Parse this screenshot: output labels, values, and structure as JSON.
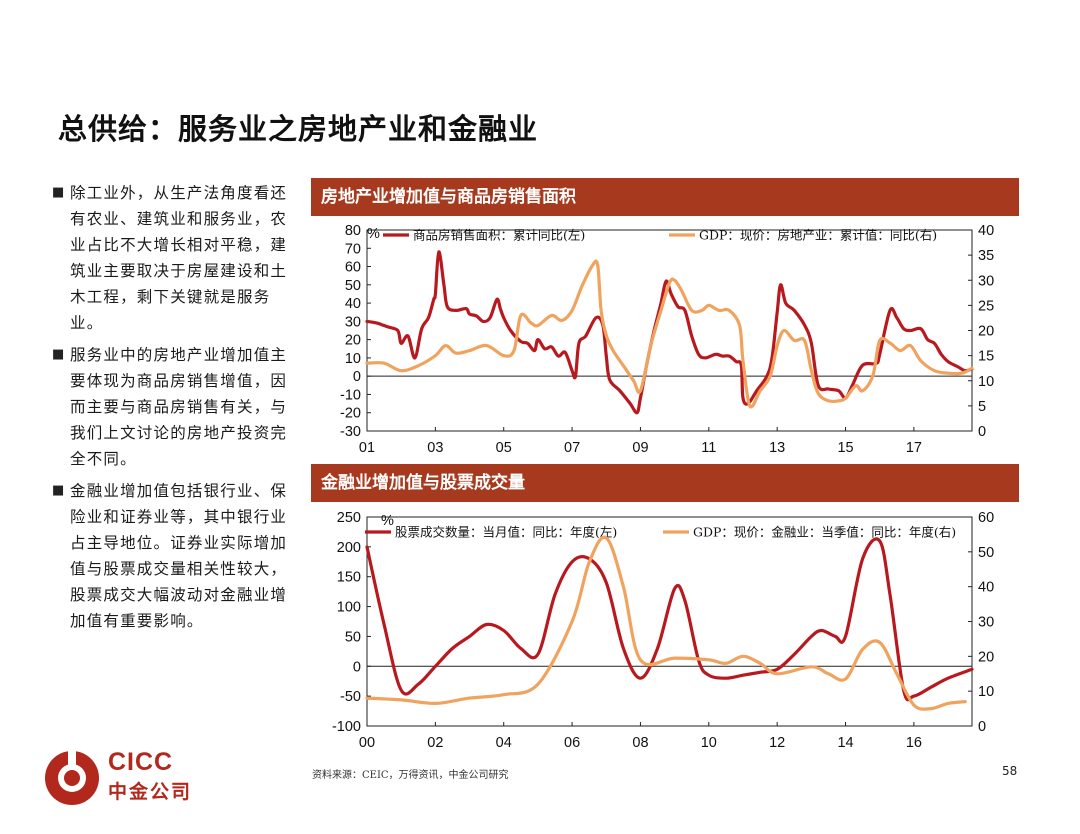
{
  "page": {
    "title": "总供给：服务业之房地产业和金融业",
    "page_number": "58",
    "source": "资料来源：CEIC，万得资讯，中金公司研究"
  },
  "logo": {
    "latin": "CICC",
    "chinese": "中金公司",
    "color": "#b2281c"
  },
  "bullets": [
    "除工业外，从生产法角度看还有农业、建筑业和服务业，农业占比不大增长相对平稳，建筑业主要取决于房屋建设和土木工程，剩下关键就是服务业。",
    "服务业中的房地产业增加值主要体现为商品房销售增值，因而主要与商品房销售有关，与我们上文讨论的房地产投资完全不同。",
    "金融业增加值包括银行业、保险业和证券业等，其中银行业占主导地位。证券业实际增加值与股票成交量相关性较大，股票成交大幅波动对金融业增加值有重要影响。"
  ],
  "colors": {
    "header_bg": "#a73a1e",
    "series_dark": "#b8191f",
    "series_light": "#f0a35e"
  },
  "chart_data": [
    {
      "type": "line",
      "title": "房地产业增加值与商品房销售面积",
      "left_unit": "%",
      "x_tick_labels": [
        "01",
        "03",
        "05",
        "07",
        "09",
        "11",
        "13",
        "15",
        "17"
      ],
      "x_ticks": [
        2001,
        2003,
        2005,
        2007,
        2009,
        2011,
        2013,
        2015,
        2017
      ],
      "xlim": [
        2001,
        2018.7
      ],
      "ylim_left": [
        -30,
        80
      ],
      "yticks_left": [
        -30,
        -20,
        -10,
        0,
        10,
        20,
        30,
        40,
        50,
        60,
        70,
        80
      ],
      "ylim_right": [
        0,
        40
      ],
      "yticks_right": [
        0,
        5,
        10,
        15,
        20,
        25,
        30,
        35,
        40
      ],
      "legend_position": "top",
      "series": [
        {
          "name": "商品房销售面积：累计同比(左)",
          "axis": "left",
          "color": "#b8191f",
          "points": [
            [
              2001.0,
              30
            ],
            [
              2001.3,
              29
            ],
            [
              2001.6,
              27
            ],
            [
              2001.9,
              25
            ],
            [
              2002.0,
              18
            ],
            [
              2002.2,
              22
            ],
            [
              2002.4,
              10
            ],
            [
              2002.6,
              26
            ],
            [
              2002.8,
              32
            ],
            [
              2002.95,
              42
            ],
            [
              2003.0,
              45
            ],
            [
              2003.1,
              68
            ],
            [
              2003.25,
              50
            ],
            [
              2003.35,
              38
            ],
            [
              2003.6,
              36
            ],
            [
              2003.9,
              37
            ],
            [
              2004.0,
              34
            ],
            [
              2004.2,
              33
            ],
            [
              2004.4,
              30
            ],
            [
              2004.6,
              32
            ],
            [
              2004.8,
              42
            ],
            [
              2004.9,
              37
            ],
            [
              2005.0,
              32
            ],
            [
              2005.2,
              25
            ],
            [
              2005.5,
              19
            ],
            [
              2005.7,
              18
            ],
            [
              2005.9,
              14
            ],
            [
              2006.0,
              20
            ],
            [
              2006.2,
              15
            ],
            [
              2006.4,
              16
            ],
            [
              2006.6,
              11
            ],
            [
              2006.8,
              13
            ],
            [
              2007.0,
              3
            ],
            [
              2007.1,
              0
            ],
            [
              2007.2,
              18
            ],
            [
              2007.4,
              22
            ],
            [
              2007.7,
              32
            ],
            [
              2007.9,
              28
            ],
            [
              2008.0,
              11
            ],
            [
              2008.1,
              -2
            ],
            [
              2008.4,
              -8
            ],
            [
              2008.7,
              -15
            ],
            [
              2008.9,
              -20
            ],
            [
              2009.0,
              -12
            ],
            [
              2009.2,
              8
            ],
            [
              2009.4,
              25
            ],
            [
              2009.6,
              40
            ],
            [
              2009.75,
              52
            ],
            [
              2009.9,
              45
            ],
            [
              2010.1,
              38
            ],
            [
              2010.3,
              36
            ],
            [
              2010.5,
              22
            ],
            [
              2010.7,
              12
            ],
            [
              2010.9,
              10
            ],
            [
              2011.2,
              12
            ],
            [
              2011.4,
              11
            ],
            [
              2011.6,
              11
            ],
            [
              2011.8,
              8
            ],
            [
              2011.95,
              6
            ],
            [
              2012.0,
              -12
            ],
            [
              2012.15,
              -15
            ],
            [
              2012.4,
              -8
            ],
            [
              2012.7,
              0
            ],
            [
              2012.85,
              10
            ],
            [
              2013.0,
              35
            ],
            [
              2013.1,
              50
            ],
            [
              2013.25,
              40
            ],
            [
              2013.5,
              36
            ],
            [
              2013.8,
              28
            ],
            [
              2014.0,
              18
            ],
            [
              2014.2,
              -5
            ],
            [
              2014.5,
              -7
            ],
            [
              2014.8,
              -8
            ],
            [
              2015.0,
              -12
            ],
            [
              2015.2,
              -5
            ],
            [
              2015.5,
              6
            ],
            [
              2015.9,
              7
            ],
            [
              2016.0,
              12
            ],
            [
              2016.3,
              36
            ],
            [
              2016.5,
              32
            ],
            [
              2016.7,
              26
            ],
            [
              2016.9,
              25
            ],
            [
              2017.2,
              26
            ],
            [
              2017.4,
              20
            ],
            [
              2017.6,
              18
            ],
            [
              2017.8,
              12
            ],
            [
              2018.0,
              8
            ],
            [
              2018.3,
              5
            ],
            [
              2018.5,
              3
            ],
            [
              2018.7,
              4
            ]
          ]
        },
        {
          "name": "GDP：现价：房地产业：累计值：同比(右)",
          "axis": "right",
          "color": "#f0a35e",
          "points": [
            [
              2001.0,
              13.5
            ],
            [
              2001.5,
              13.5
            ],
            [
              2002.0,
              12
            ],
            [
              2002.5,
              13
            ],
            [
              2003.0,
              15
            ],
            [
              2003.3,
              17
            ],
            [
              2003.6,
              15.5
            ],
            [
              2004.0,
              16
            ],
            [
              2004.5,
              17
            ],
            [
              2005.0,
              15
            ],
            [
              2005.3,
              16
            ],
            [
              2005.5,
              23
            ],
            [
              2005.8,
              21.5
            ],
            [
              2006.0,
              21
            ],
            [
              2006.4,
              23
            ],
            [
              2006.7,
              22
            ],
            [
              2007.0,
              24
            ],
            [
              2007.3,
              29
            ],
            [
              2007.6,
              33
            ],
            [
              2007.75,
              33
            ],
            [
              2007.85,
              24
            ],
            [
              2008.0,
              19
            ],
            [
              2008.2,
              16
            ],
            [
              2008.5,
              13
            ],
            [
              2008.8,
              10
            ],
            [
              2009.0,
              8
            ],
            [
              2009.3,
              17
            ],
            [
              2009.6,
              24
            ],
            [
              2009.85,
              29.5
            ],
            [
              2010.0,
              30
            ],
            [
              2010.2,
              28
            ],
            [
              2010.5,
              24
            ],
            [
              2010.8,
              24
            ],
            [
              2011.0,
              25
            ],
            [
              2011.3,
              24
            ],
            [
              2011.6,
              24
            ],
            [
              2011.9,
              21
            ],
            [
              2012.0,
              14
            ],
            [
              2012.2,
              5
            ],
            [
              2012.5,
              8
            ],
            [
              2012.8,
              11
            ],
            [
              2013.0,
              17
            ],
            [
              2013.2,
              20
            ],
            [
              2013.5,
              18
            ],
            [
              2013.8,
              18
            ],
            [
              2014.0,
              12
            ],
            [
              2014.2,
              7.5
            ],
            [
              2014.5,
              6
            ],
            [
              2014.8,
              6
            ],
            [
              2015.0,
              6.5
            ],
            [
              2015.3,
              9
            ],
            [
              2015.5,
              8
            ],
            [
              2015.8,
              11
            ],
            [
              2016.0,
              18
            ],
            [
              2016.3,
              17.5
            ],
            [
              2016.6,
              16
            ],
            [
              2016.9,
              17
            ],
            [
              2017.2,
              14
            ],
            [
              2017.6,
              12
            ],
            [
              2018.0,
              11.5
            ],
            [
              2018.4,
              11.5
            ],
            [
              2018.7,
              12.5
            ]
          ]
        }
      ]
    },
    {
      "type": "line",
      "title": "金融业增加值与股票成交量",
      "left_unit": "%",
      "x_tick_labels": [
        "00",
        "02",
        "04",
        "06",
        "08",
        "10",
        "12",
        "14",
        "16"
      ],
      "x_ticks": [
        2000,
        2002,
        2004,
        2006,
        2008,
        2010,
        2012,
        2014,
        2016
      ],
      "xlim": [
        2000,
        2017.7
      ],
      "ylim_left": [
        -100,
        250
      ],
      "yticks_left": [
        -100,
        -50,
        0,
        50,
        100,
        150,
        200,
        250
      ],
      "ylim_right": [
        0,
        60
      ],
      "yticks_right": [
        0,
        10,
        20,
        30,
        40,
        50,
        60
      ],
      "legend_position": "top",
      "series": [
        {
          "name": "股票成交数量：当月值：同比：年度(左)",
          "axis": "left",
          "color": "#b8191f",
          "points": [
            [
              2000,
              200
            ],
            [
              2000.5,
              70
            ],
            [
              2001,
              -40
            ],
            [
              2001.5,
              -30
            ],
            [
              2002,
              0
            ],
            [
              2002.5,
              30
            ],
            [
              2003,
              50
            ],
            [
              2003.5,
              70
            ],
            [
              2004,
              60
            ],
            [
              2004.5,
              30
            ],
            [
              2005,
              20
            ],
            [
              2005.5,
              120
            ],
            [
              2006,
              175
            ],
            [
              2006.5,
              180
            ],
            [
              2007,
              140
            ],
            [
              2007.5,
              30
            ],
            [
              2008,
              -20
            ],
            [
              2008.5,
              30
            ],
            [
              2009,
              130
            ],
            [
              2009.3,
              110
            ],
            [
              2009.7,
              10
            ],
            [
              2010,
              -15
            ],
            [
              2010.5,
              -20
            ],
            [
              2011,
              -15
            ],
            [
              2011.5,
              -10
            ],
            [
              2012,
              -5
            ],
            [
              2012.5,
              20
            ],
            [
              2013,
              50
            ],
            [
              2013.3,
              60
            ],
            [
              2013.7,
              50
            ],
            [
              2014,
              50
            ],
            [
              2014.5,
              180
            ],
            [
              2015,
              210
            ],
            [
              2015.3,
              120
            ],
            [
              2015.7,
              -40
            ],
            [
              2016,
              -50
            ],
            [
              2016.5,
              -35
            ],
            [
              2017,
              -20
            ],
            [
              2017.7,
              -5
            ]
          ]
        },
        {
          "name": "GDP：现价：金融业：当季值：同比：年度(右)",
          "axis": "right",
          "color": "#f0a35e",
          "points": [
            [
              2000,
              8
            ],
            [
              2001,
              7.5
            ],
            [
              2002,
              6.5
            ],
            [
              2003,
              8
            ],
            [
              2004,
              9
            ],
            [
              2005,
              12
            ],
            [
              2006,
              30
            ],
            [
              2006.5,
              47
            ],
            [
              2007,
              54
            ],
            [
              2007.5,
              40
            ],
            [
              2008,
              19
            ],
            [
              2009,
              19.5
            ],
            [
              2010,
              19
            ],
            [
              2010.5,
              18
            ],
            [
              2011,
              20
            ],
            [
              2011.5,
              18
            ],
            [
              2012,
              15
            ],
            [
              2013,
              17
            ],
            [
              2013.5,
              15
            ],
            [
              2014,
              13.5
            ],
            [
              2014.5,
              22
            ],
            [
              2015,
              24
            ],
            [
              2015.5,
              15
            ],
            [
              2016,
              6
            ],
            [
              2016.5,
              5
            ],
            [
              2017,
              6.5
            ],
            [
              2017.5,
              7
            ]
          ]
        }
      ]
    }
  ]
}
